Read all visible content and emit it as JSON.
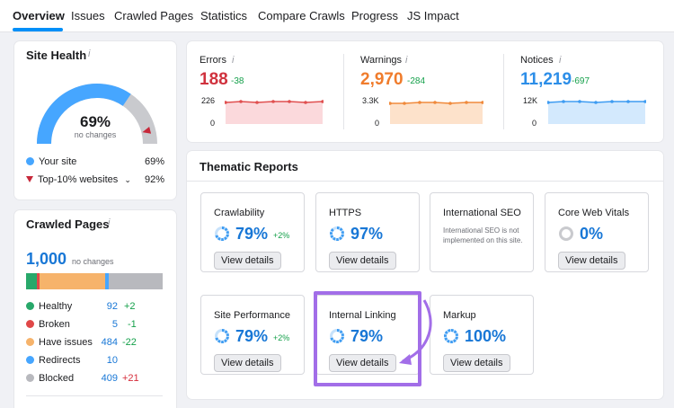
{
  "tabs": [
    {
      "label": "Overview"
    },
    {
      "label": "Issues"
    },
    {
      "label": "Crawled Pages"
    },
    {
      "label": "Statistics"
    },
    {
      "label": "Compare Crawls"
    },
    {
      "label": "Progress"
    },
    {
      "label": "JS Impact"
    }
  ],
  "site_health": {
    "title": "Site Health",
    "info": "i",
    "value": "69%",
    "value_fraction": 0.69,
    "top10_fraction": 0.92,
    "subtitle": "no changes",
    "legend": [
      {
        "label": "Your site",
        "value": "69%",
        "color": "#46a6ff"
      },
      {
        "label": "Top-10% websites",
        "value": "92%",
        "color": "#c7283a"
      }
    ]
  },
  "crawled_pages": {
    "title": "Crawled Pages",
    "info": "i",
    "total": "1,000",
    "total_note": "no changes",
    "rows": [
      {
        "label": "Healthy",
        "value": "92",
        "delta": "+2",
        "color": "#28a86a",
        "delta_color": "#14a04a"
      },
      {
        "label": "Broken",
        "value": "5",
        "delta": "-1",
        "color": "#e04848",
        "delta_color": "#14a04a"
      },
      {
        "label": "Have issues",
        "value": "484",
        "delta": "-22",
        "color": "#f6b36b",
        "delta_color": "#14a04a"
      },
      {
        "label": "Redirects",
        "value": "10",
        "delta": "",
        "color": "#46a6ff",
        "delta_color": "#14a04a"
      },
      {
        "label": "Blocked",
        "value": "409",
        "delta": "+21",
        "color": "#b8b9be",
        "delta_color": "#d62d3b"
      }
    ]
  },
  "metrics": [
    {
      "label": "Errors",
      "info": "i",
      "value": "188",
      "delta": "-38",
      "axis_top": "226",
      "axis_bottom": "0",
      "color": "#e05050",
      "fill": "#fbd9dc"
    },
    {
      "label": "Warnings",
      "info": "i",
      "value": "2,970",
      "delta": "-284",
      "axis_top": "3.3K",
      "axis_bottom": "0",
      "color": "#f08a3c",
      "fill": "#fde2cb"
    },
    {
      "label": "Notices",
      "info": "i",
      "value": "11,219",
      "delta": "-697",
      "axis_top": "12K",
      "axis_bottom": "0",
      "color": "#3e9cf2",
      "fill": "#d3e9fd"
    }
  ],
  "thematic": {
    "title": "Thematic Reports",
    "tiles": [
      {
        "title": "Crawlability",
        "value": "79%",
        "delta": "+2%",
        "button": "View details",
        "fraction": 0.79
      },
      {
        "title": "HTTPS",
        "value": "97%",
        "delta": "",
        "button": "View details",
        "fraction": 0.97
      },
      {
        "title": "International SEO",
        "value": "",
        "delta": "",
        "button": "",
        "note": "International SEO is not implemented on this site."
      },
      {
        "title": "Core Web Vitals",
        "value": "0%",
        "delta": "",
        "button": "View details",
        "fraction": 0.0
      },
      {
        "title": "Site Performance",
        "value": "79%",
        "delta": "+2%",
        "button": "View details",
        "fraction": 0.79
      },
      {
        "title": "Internal Linking",
        "value": "79%",
        "delta": "",
        "button": "View details",
        "fraction": 0.79
      },
      {
        "title": "Markup",
        "value": "100%",
        "delta": "",
        "button": "View details",
        "fraction": 1.0
      }
    ]
  },
  "highlight_color": "#a26ee8"
}
